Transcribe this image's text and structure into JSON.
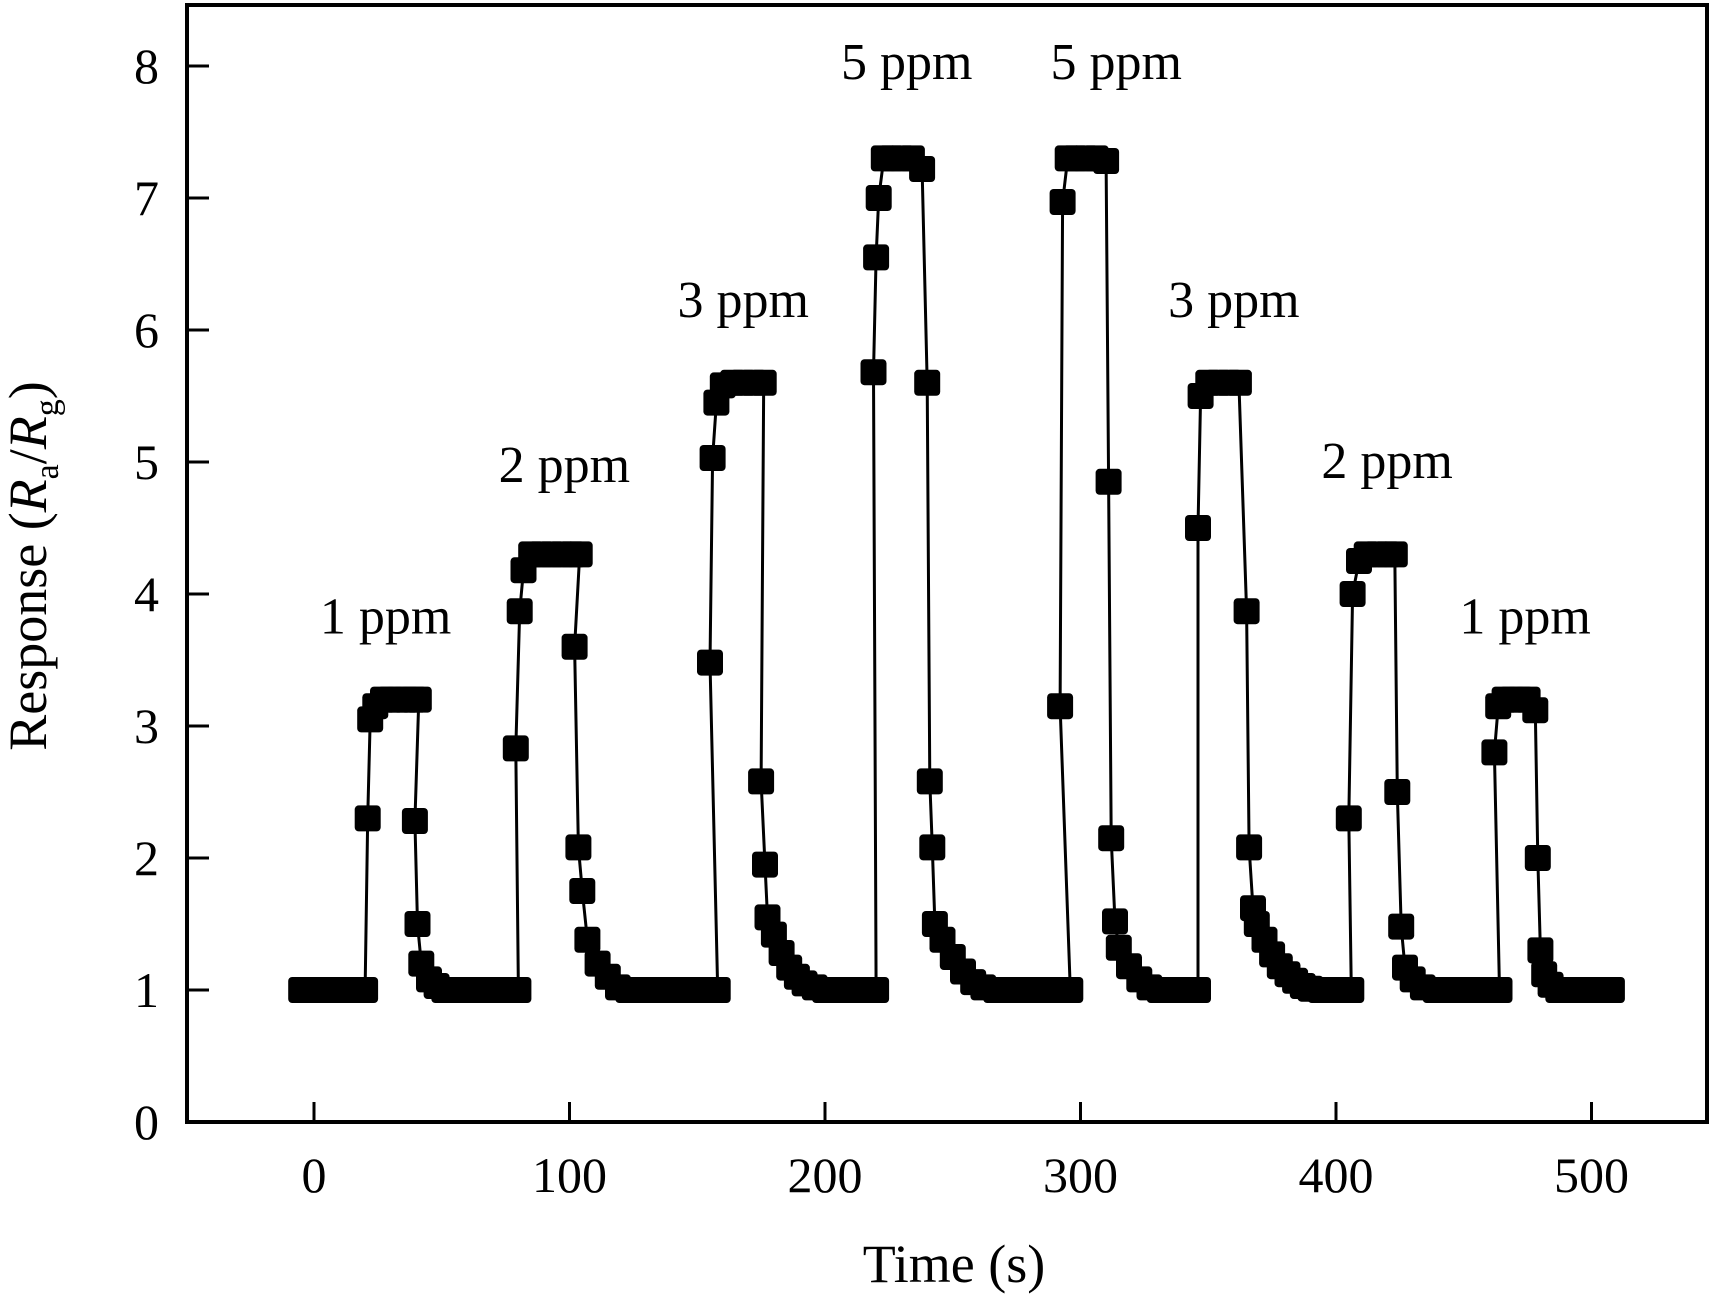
{
  "chart_data": {
    "type": "scatter",
    "xlabel": "Time (s)",
    "ylabel": {
      "prefix": "Response (",
      "num": "R",
      "num_sub": "a",
      "slash": "/",
      "den": "R",
      "den_sub": "g",
      "suffix": ")"
    },
    "xlim": [
      -50,
      550
    ],
    "ylim": [
      0,
      8.5
    ],
    "xticks": [
      0,
      100,
      200,
      300,
      400,
      500
    ],
    "yticks": [
      0,
      1,
      2,
      3,
      4,
      5,
      6,
      7,
      8
    ],
    "grid": false,
    "legend": "none",
    "marker": "filled-square",
    "line": "connected",
    "annotations": [
      {
        "text": "1 ppm",
        "x": 28,
        "y": 3.7
      },
      {
        "text": "2 ppm",
        "x": 98,
        "y": 4.85
      },
      {
        "text": "3 ppm",
        "x": 168,
        "y": 6.1
      },
      {
        "text": "5 ppm",
        "x": 232,
        "y": 7.9
      },
      {
        "text": "5 ppm",
        "x": 314,
        "y": 7.9
      },
      {
        "text": "3 ppm",
        "x": 360,
        "y": 6.1
      },
      {
        "text": "2 ppm",
        "x": 420,
        "y": 4.88
      },
      {
        "text": "1 ppm",
        "x": 474,
        "y": 3.7
      }
    ],
    "series": [
      {
        "points": [
          [
            -5,
            1
          ],
          [
            0,
            1
          ],
          [
            5,
            1
          ],
          [
            10,
            1
          ],
          [
            15,
            1
          ],
          [
            20,
            1
          ],
          [
            21,
            2.3
          ],
          [
            22,
            3.05
          ],
          [
            24,
            3.15
          ],
          [
            27,
            3.2
          ],
          [
            30,
            3.2
          ],
          [
            33,
            3.2
          ],
          [
            36,
            3.2
          ],
          [
            39,
            3.2
          ],
          [
            41,
            3.2
          ],
          [
            39.5,
            2.28
          ],
          [
            40.5,
            1.5
          ],
          [
            42,
            1.2
          ],
          [
            45,
            1.08
          ],
          [
            48,
            1.03
          ],
          [
            51,
            1
          ],
          [
            55,
            1
          ],
          [
            60,
            1
          ],
          [
            65,
            1
          ],
          [
            70,
            1
          ],
          [
            75,
            1
          ],
          [
            80,
            1
          ],
          [
            79,
            2.83
          ],
          [
            80.5,
            3.87
          ],
          [
            82,
            4.18
          ],
          [
            85,
            4.3
          ],
          [
            89,
            4.3
          ],
          [
            93,
            4.3
          ],
          [
            97,
            4.3
          ],
          [
            101,
            4.3
          ],
          [
            104,
            4.3
          ],
          [
            102,
            3.6
          ],
          [
            103.5,
            2.08
          ],
          [
            105,
            1.75
          ],
          [
            107,
            1.38
          ],
          [
            111,
            1.2
          ],
          [
            115,
            1.1
          ],
          [
            119,
            1.02
          ],
          [
            123,
            1
          ],
          [
            128,
            1
          ],
          [
            133,
            1
          ],
          [
            138,
            1
          ],
          [
            143,
            1
          ],
          [
            148,
            1
          ],
          [
            153,
            1
          ],
          [
            158,
            1
          ],
          [
            155,
            3.48
          ],
          [
            156,
            5.03
          ],
          [
            157.5,
            5.45
          ],
          [
            160,
            5.58
          ],
          [
            164,
            5.6
          ],
          [
            168,
            5.6
          ],
          [
            172,
            5.6
          ],
          [
            176,
            5.6
          ],
          [
            175,
            2.58
          ],
          [
            176.5,
            1.95
          ],
          [
            177.5,
            1.55
          ],
          [
            180,
            1.42
          ],
          [
            183,
            1.28
          ],
          [
            186,
            1.17
          ],
          [
            189,
            1.1
          ],
          [
            192,
            1.05
          ],
          [
            196,
            1.02
          ],
          [
            200,
            1
          ],
          [
            205,
            1
          ],
          [
            210,
            1
          ],
          [
            215,
            1
          ],
          [
            220,
            1
          ],
          [
            219,
            5.68
          ],
          [
            220,
            6.55
          ],
          [
            221,
            7.0
          ],
          [
            223,
            7.3
          ],
          [
            226,
            7.3
          ],
          [
            230,
            7.3
          ],
          [
            234,
            7.3
          ],
          [
            238,
            7.22
          ],
          [
            240,
            5.6
          ],
          [
            241,
            2.58
          ],
          [
            242,
            2.08
          ],
          [
            243,
            1.5
          ],
          [
            246,
            1.38
          ],
          [
            250,
            1.25
          ],
          [
            254,
            1.14
          ],
          [
            258,
            1.06
          ],
          [
            262,
            1.02
          ],
          [
            267,
            1
          ],
          [
            272,
            1
          ],
          [
            277,
            1
          ],
          [
            282,
            1
          ],
          [
            287,
            1
          ],
          [
            292,
            1
          ],
          [
            296,
            1
          ],
          [
            292,
            3.15
          ],
          [
            293,
            6.97
          ],
          [
            295,
            7.3
          ],
          [
            298,
            7.3
          ],
          [
            302,
            7.3
          ],
          [
            306,
            7.3
          ],
          [
            310,
            7.28
          ],
          [
            311,
            4.85
          ],
          [
            312,
            2.15
          ],
          [
            313.5,
            1.52
          ],
          [
            315,
            1.32
          ],
          [
            319,
            1.18
          ],
          [
            323,
            1.08
          ],
          [
            327,
            1.02
          ],
          [
            331,
            1
          ],
          [
            336,
            1
          ],
          [
            341,
            1
          ],
          [
            346,
            1
          ],
          [
            346,
            4.5
          ],
          [
            347,
            5.5
          ],
          [
            350,
            5.6
          ],
          [
            354,
            5.6
          ],
          [
            358,
            5.6
          ],
          [
            362,
            5.6
          ],
          [
            365,
            3.87
          ],
          [
            366,
            2.08
          ],
          [
            367.5,
            1.62
          ],
          [
            369,
            1.5
          ],
          [
            372,
            1.38
          ],
          [
            375,
            1.27
          ],
          [
            378,
            1.18
          ],
          [
            381,
            1.12
          ],
          [
            384,
            1.07
          ],
          [
            387,
            1.03
          ],
          [
            390,
            1.01
          ],
          [
            394,
            1
          ],
          [
            398,
            1
          ],
          [
            402,
            1
          ],
          [
            406,
            1
          ],
          [
            405,
            2.3
          ],
          [
            406.5,
            4.0
          ],
          [
            409,
            4.25
          ],
          [
            412,
            4.3
          ],
          [
            416,
            4.3
          ],
          [
            420,
            4.3
          ],
          [
            423,
            4.3
          ],
          [
            424,
            2.5
          ],
          [
            425.5,
            1.48
          ],
          [
            427,
            1.17
          ],
          [
            430,
            1.08
          ],
          [
            434,
            1.02
          ],
          [
            439,
            1
          ],
          [
            444,
            1
          ],
          [
            449,
            1
          ],
          [
            454,
            1
          ],
          [
            459,
            1
          ],
          [
            464,
            1
          ],
          [
            462,
            2.8
          ],
          [
            463.5,
            3.15
          ],
          [
            466,
            3.2
          ],
          [
            469,
            3.2
          ],
          [
            472,
            3.2
          ],
          [
            475,
            3.2
          ],
          [
            478,
            3.12
          ],
          [
            479,
            2.0
          ],
          [
            480,
            1.3
          ],
          [
            481.5,
            1.12
          ],
          [
            484,
            1.04
          ],
          [
            487,
            1
          ],
          [
            491,
            1
          ],
          [
            495,
            1
          ],
          [
            500,
            1
          ],
          [
            505,
            1
          ],
          [
            508,
            1
          ]
        ]
      }
    ]
  }
}
